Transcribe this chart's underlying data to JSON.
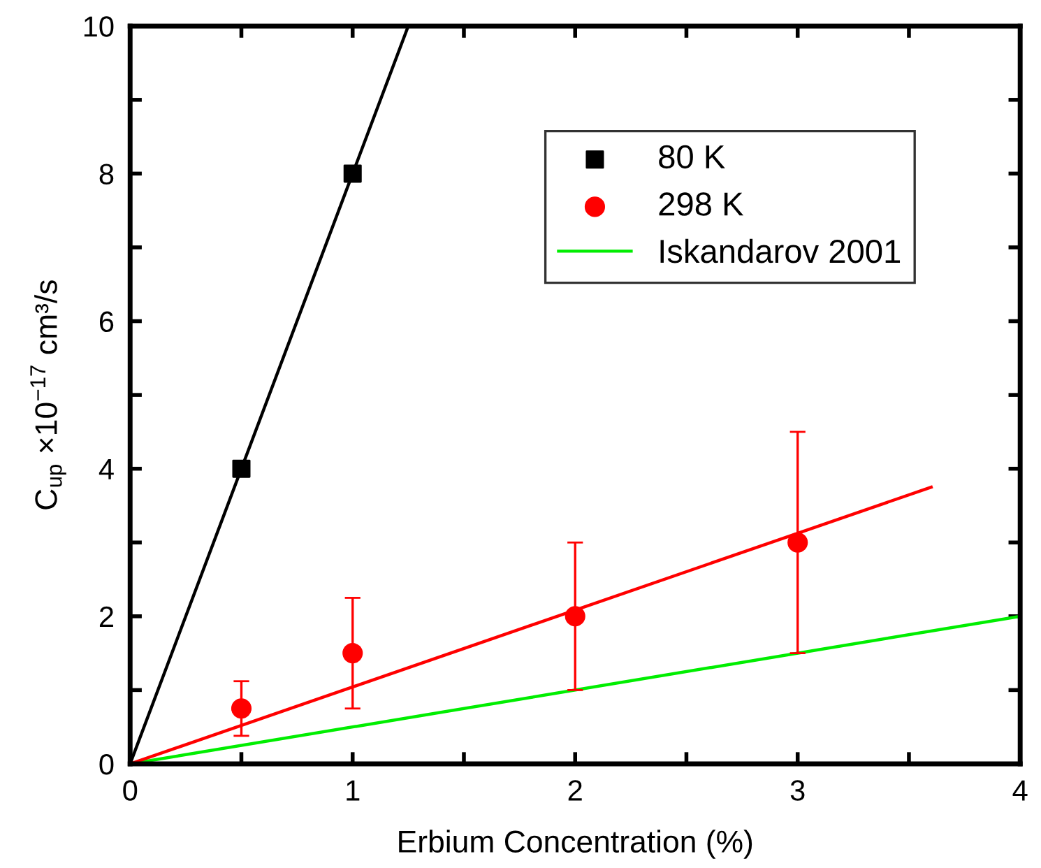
{
  "chart_data": {
    "type": "scatter",
    "xlabel": "Erbium Concentration (%)",
    "ylabel": "C$_{up}$ ×10$^{−17}$ cm³/s",
    "xlim": [
      0,
      4
    ],
    "ylim": [
      0,
      10
    ],
    "xticks": [
      0,
      {
        "value": 0.5,
        "label": null
      },
      1,
      {
        "value": 1.5,
        "label": null
      },
      2,
      {
        "value": 2.5,
        "label": null
      },
      3,
      {
        "value": 3.5,
        "label": null
      },
      4
    ],
    "yticks": [
      0,
      {
        "value": 1,
        "label": null
      },
      2,
      {
        "value": 3,
        "label": null
      },
      4,
      {
        "value": 5,
        "label": null
      },
      6,
      {
        "value": 7,
        "label": null
      },
      8,
      {
        "value": 9,
        "label": null
      },
      10
    ],
    "grid": false,
    "legend": "top right",
    "series": [
      {
        "name": "80 K",
        "color": "#000000",
        "x": [
          0.5,
          1
        ],
        "values": [
          4,
          8
        ],
        "marker": "square"
      },
      {
        "name": "298 K",
        "color": "#ff0000",
        "x": [
          0.5,
          1,
          2,
          3
        ],
        "values": [
          0.75,
          1.5,
          2,
          3
        ],
        "marker": "circle",
        "errors": [
          [
            0.38,
            1.12
          ],
          [
            0.75,
            2.25
          ],
          [
            1,
            3
          ],
          [
            1.5,
            4.5
          ]
        ]
      },
      {
        "type": "line",
        "name": "Iskandarov 2001",
        "color": "#00ee00",
        "x": [
          0,
          4
        ],
        "values": [
          0,
          2
        ],
        "marker": "none",
        "line_style": "solid"
      },
      {
        "type": "line",
        "color": "#000000",
        "x": [
          0,
          1.25
        ],
        "values": [
          0,
          10
        ],
        "marker": "none",
        "line_style": "solid"
      },
      {
        "type": "line",
        "color": "#ff0000",
        "x": [
          0,
          3.6
        ],
        "values": [
          0,
          3.75
        ],
        "marker": "none",
        "line_style": "solid"
      }
    ]
  }
}
